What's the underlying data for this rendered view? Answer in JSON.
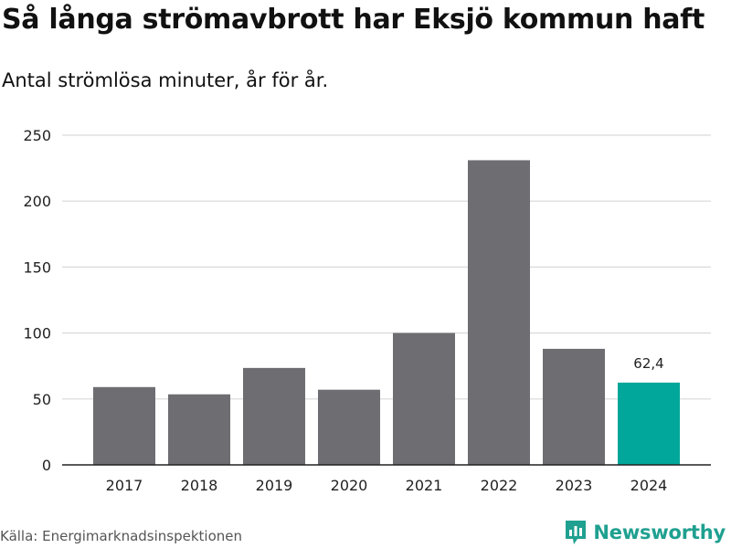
{
  "title": "Så långa strömavbrott har Eksjö kommun haft",
  "subtitle": "Antal strömlösa minuter, år för år.",
  "source": "Källa: Energimarknadsinspektionen",
  "brand": {
    "name": "Newsworthy",
    "icon": "bar-chart-logo-icon",
    "color": "#1fa090"
  },
  "colors": {
    "bar": "#6e6d72",
    "highlight": "#00a79a",
    "grid": "#d9d9d9",
    "axis": "#222222"
  },
  "chart_data": {
    "type": "bar",
    "title": "Så långa strömavbrott har Eksjö kommun haft",
    "subtitle": "Antal strömlösa minuter, år för år.",
    "xlabel": "",
    "ylabel": "",
    "categories": [
      "2017",
      "2018",
      "2019",
      "2020",
      "2021",
      "2022",
      "2023",
      "2024"
    ],
    "values": [
      59,
      53.5,
      73.5,
      57,
      100,
      231,
      88,
      62.4
    ],
    "ylim": [
      0,
      250
    ],
    "yticks": [
      "0",
      "50",
      "100",
      "150",
      "200",
      "250"
    ],
    "ytick_values": [
      0,
      50,
      100,
      150,
      200,
      250
    ],
    "highlight_index": 7,
    "data_labels": [
      {
        "index": 7,
        "text": "62,4"
      }
    ],
    "grid": true,
    "legend": "none"
  }
}
